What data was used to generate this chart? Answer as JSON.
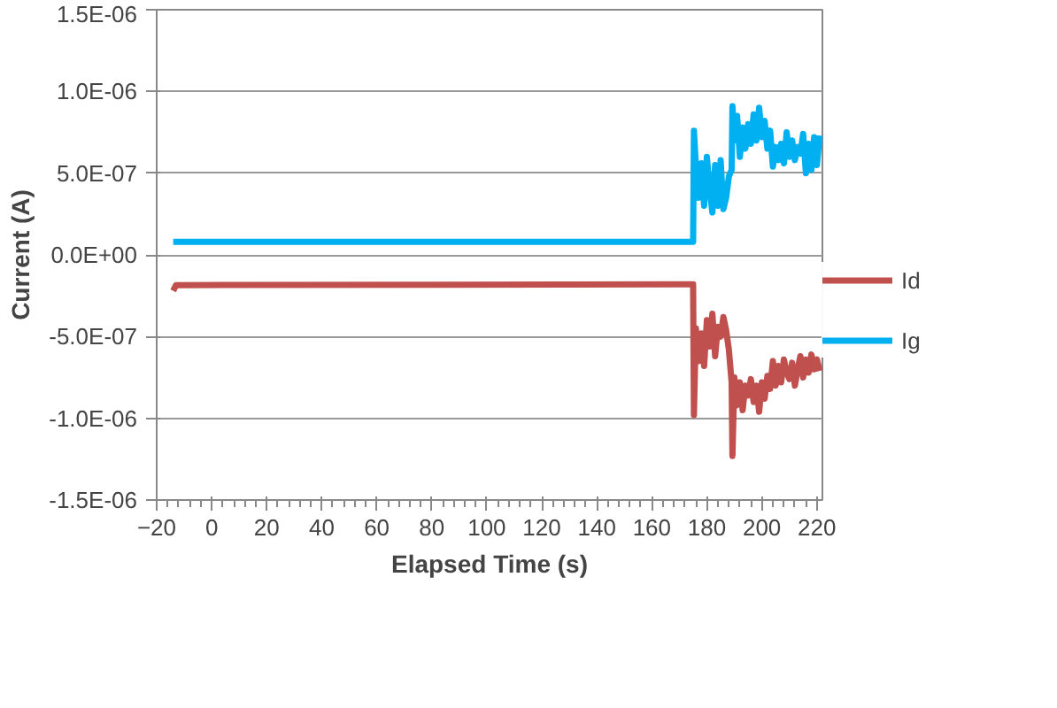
{
  "chart_data": {
    "type": "line",
    "xlabel": "Elapsed Time (s)",
    "ylabel": "Current (A)",
    "xlim": [
      -20,
      222
    ],
    "xticks": [
      -20,
      0,
      20,
      40,
      60,
      80,
      100,
      120,
      140,
      160,
      180,
      200,
      220
    ],
    "ylim": [
      -1.5e-06,
      1.5e-06
    ],
    "yticks": [
      {
        "value": -1.5e-06,
        "label": "-1.5E-06"
      },
      {
        "value": -1e-06,
        "label": "-1.0E-06"
      },
      {
        "value": -5e-07,
        "label": "-5.0E-07"
      },
      {
        "value": 0,
        "label": "0.0E+00"
      },
      {
        "value": 5e-07,
        "label": "5.0E-07"
      },
      {
        "value": 1e-06,
        "label": "1.0E-06"
      },
      {
        "value": 1.5e-06,
        "label": "1.5E-06"
      }
    ],
    "grid": "y",
    "legend": "right",
    "line_style": "solid",
    "series": [
      {
        "name": "Id",
        "color": "#c0504d",
        "x": [
          -14,
          -13,
          175,
          175.3,
          176,
          177,
          178,
          179,
          180,
          181,
          182,
          183,
          184,
          185,
          186,
          187,
          188,
          189,
          189.3,
          190,
          191,
          192,
          193,
          194,
          195,
          196,
          197,
          198,
          199,
          200,
          201,
          202,
          203,
          204,
          205,
          206,
          207,
          208,
          209,
          210,
          211,
          212,
          213,
          214,
          215,
          216,
          217,
          218,
          219,
          220,
          221
        ],
        "values": [
          -2.2e-07,
          -1.85e-07,
          -1.8e-07,
          -9.8e-07,
          -4.5e-07,
          -6.5e-07,
          -4.8e-07,
          -6.8e-07,
          -4e-07,
          -5.6e-07,
          -3.6e-07,
          -6.2e-07,
          -4.4e-07,
          -5e-07,
          -3.8e-07,
          -4.6e-07,
          -5.8e-07,
          -7.8e-07,
          -1.23e-06,
          -7.5e-07,
          -9.2e-07,
          -7.8e-07,
          -9.5e-07,
          -8e-07,
          -8.6e-07,
          -7.6e-07,
          -9e-07,
          -8e-07,
          -9.6e-07,
          -7.8e-07,
          -8.8e-07,
          -7.4e-07,
          -8.2e-07,
          -6.5e-07,
          -8e-07,
          -6.8e-07,
          -7.8e-07,
          -6.4e-07,
          -7.2e-07,
          -7.6e-07,
          -6.6e-07,
          -8e-07,
          -7e-07,
          -6.2e-07,
          -7.5e-07,
          -6.4e-07,
          -7.2e-07,
          -6.1e-07,
          -7e-07,
          -6.4e-07,
          -7.1e-07
        ]
      },
      {
        "name": "Ig",
        "color": "#00b0f0",
        "x": [
          -14,
          175,
          175.3,
          176,
          177,
          178,
          179,
          180,
          181,
          182,
          183,
          184,
          185,
          186,
          187,
          188,
          189,
          189.3,
          190,
          191,
          192,
          193,
          194,
          195,
          196,
          197,
          198,
          199,
          200,
          201,
          202,
          203,
          204,
          205,
          206,
          207,
          208,
          209,
          210,
          211,
          212,
          213,
          214,
          215,
          216,
          217,
          218,
          219,
          220,
          221
        ],
        "values": [
          8e-08,
          8e-08,
          7.6e-07,
          5.5e-07,
          3.5e-07,
          5.6e-07,
          3e-07,
          6e-07,
          4e-07,
          2.6e-07,
          5.5e-07,
          3e-07,
          5.8e-07,
          2.8e-07,
          3.5e-07,
          4.8e-07,
          5.2e-07,
          9.1e-07,
          7e-07,
          8.5e-07,
          6e-07,
          7.8e-07,
          6.5e-07,
          8e-07,
          6.8e-07,
          8.6e-07,
          7e-07,
          9e-07,
          7.2e-07,
          8.2e-07,
          6.5e-07,
          7.6e-07,
          5.4e-07,
          6.6e-07,
          5.8e-07,
          6.8e-07,
          5.6e-07,
          7.5e-07,
          6e-07,
          7e-07,
          5.8e-07,
          6.6e-07,
          6.2e-07,
          7.4e-07,
          5e-07,
          6.8e-07,
          5.2e-07,
          7.2e-07,
          5.5e-07,
          7.3e-07
        ]
      }
    ]
  }
}
